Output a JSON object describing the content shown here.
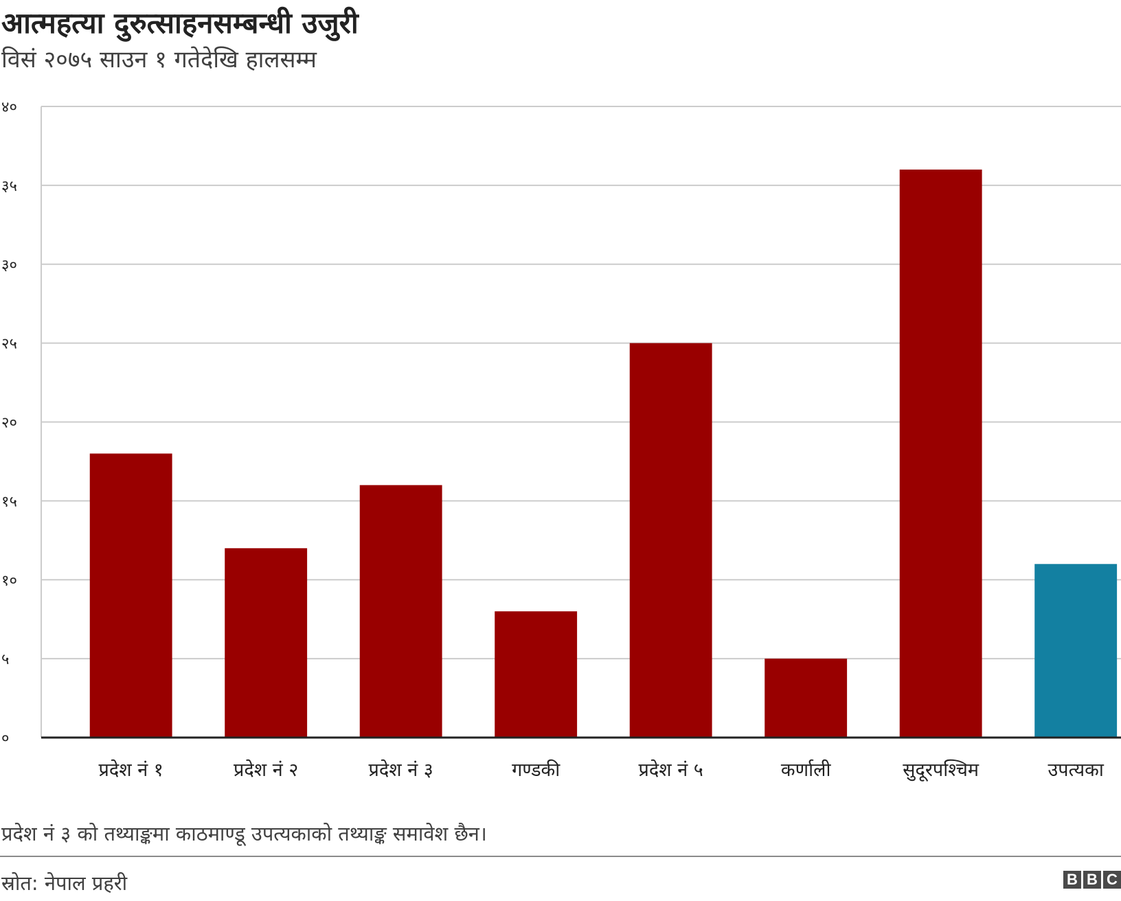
{
  "header": {
    "title": "आत्महत्या दुरुत्साहनसम्बन्धी उजुरी",
    "subtitle": "विसं २०७५ साउन १ गतेदेखि हालसम्म"
  },
  "footer": {
    "note": "प्रदेश नं ३ को तथ्याङ्कमा काठमाण्डू उपत्यकाको तथ्याङ्क समावेश छैन।",
    "source": "स्रोत: नेपाल प्रहरी",
    "logo_letters": [
      "B",
      "B",
      "C"
    ]
  },
  "chart_data": {
    "type": "bar",
    "categories": [
      "प्रदेश नं १",
      "प्रदेश नं २",
      "प्रदेश नं ३",
      "गण्डकी",
      "प्रदेश नं ५",
      "कर्णाली",
      "सुदूरपश्चिम",
      "उपत्यका"
    ],
    "values": [
      18,
      12,
      16,
      8,
      25,
      5,
      36,
      11
    ],
    "ylim": [
      0,
      40
    ],
    "yticks": [
      0,
      5,
      10,
      15,
      20,
      25,
      30,
      35,
      40
    ],
    "ytick_labels": [
      "०",
      "५",
      "१०",
      "१५",
      "२०",
      "२५",
      "३०",
      "३५",
      "४०"
    ],
    "grid": true,
    "bar_colors": [
      "#990000",
      "#990000",
      "#990000",
      "#990000",
      "#990000",
      "#990000",
      "#990000",
      "#1380A1"
    ],
    "gridline_color": "#cccccc",
    "axis_color": "#222222"
  }
}
